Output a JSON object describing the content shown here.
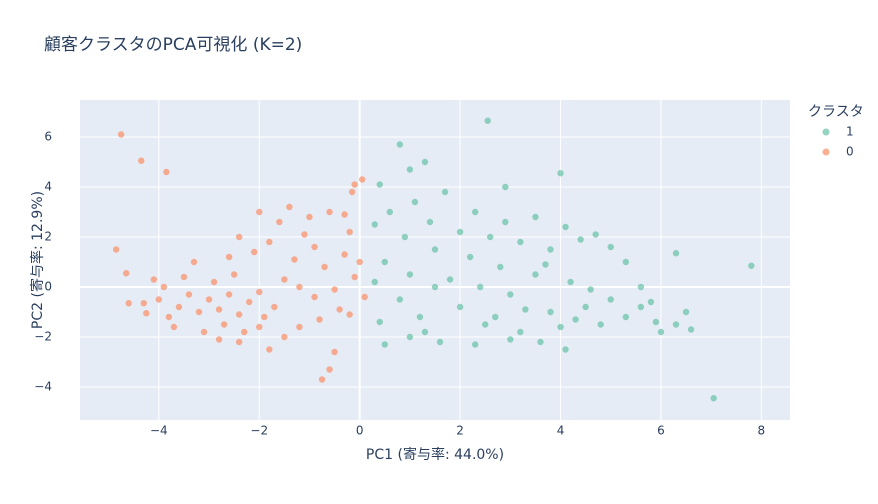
{
  "chart_data": {
    "type": "scatter",
    "title": "顧客クラスタのPCA可視化 (K=2)",
    "x_label": "PC1 (寄与率: 44.0%)",
    "y_label": "PC2 (寄与率: 12.9%)",
    "legend_title": "クラスタ",
    "xlim": [
      -5.57,
      8.57
    ],
    "ylim": [
      -5.32,
      7.48
    ],
    "xticks": [
      {
        "value": -4,
        "label": "−4"
      },
      {
        "value": -2,
        "label": "−2"
      },
      0,
      2,
      4,
      6,
      8
    ],
    "yticks": [
      {
        "value": -4,
        "label": "−4"
      },
      {
        "value": -2,
        "label": "−2"
      },
      0,
      2,
      4,
      6
    ],
    "grid": true,
    "series": [
      {
        "name": "1",
        "color": "#66c2a5",
        "x": [
          0.5,
          0.8,
          1.0,
          1.2,
          1.5,
          1.8,
          2.0,
          2.2,
          2.5,
          2.8,
          3.0,
          3.2,
          3.5,
          3.8,
          4.0,
          4.2,
          4.5,
          4.8,
          5.0,
          5.3,
          5.6,
          5.9,
          6.0,
          6.3,
          6.6,
          0.3,
          0.6,
          0.9,
          1.1,
          1.4,
          1.7,
          2.0,
          2.3,
          2.6,
          2.9,
          3.2,
          3.5,
          3.8,
          4.1,
          4.4,
          4.7,
          5.0,
          5.3,
          5.6,
          1.0,
          1.6,
          2.3,
          3.0,
          3.6,
          4.1,
          0.4,
          0.3,
          0.5,
          1.3,
          2.7,
          3.3,
          4.3,
          1.5,
          2.4,
          3.7,
          4.6,
          5.8,
          6.5,
          2.55,
          7.05,
          7.8,
          6.3,
          0.8,
          4.0,
          2.9,
          1.3,
          1.0,
          0.4
        ],
        "y": [
          1.0,
          -0.5,
          0.5,
          -1.2,
          1.5,
          0.3,
          -0.8,
          1.2,
          -1.5,
          0.8,
          -0.3,
          -1.8,
          0.5,
          -1.0,
          -1.6,
          0.2,
          -0.8,
          -1.5,
          -0.5,
          -1.2,
          -0.8,
          -1.4,
          -1.8,
          -1.5,
          -1.7,
          2.5,
          3.0,
          2.0,
          3.4,
          2.6,
          3.8,
          2.2,
          3.0,
          2.0,
          2.6,
          1.8,
          2.8,
          1.5,
          2.4,
          1.9,
          2.1,
          1.6,
          1.0,
          0.0,
          -2.0,
          -2.2,
          -2.3,
          -2.1,
          -2.2,
          -2.5,
          -1.4,
          0.2,
          -2.3,
          -1.8,
          -1.2,
          -0.9,
          -1.3,
          0.0,
          0.0,
          0.9,
          -0.1,
          -0.6,
          -1.0,
          6.65,
          -4.45,
          0.85,
          1.35,
          5.7,
          4.55,
          4.0,
          5.0,
          4.7,
          4.1
        ]
      },
      {
        "name": "0",
        "color": "#fc8d62",
        "x": [
          -3.0,
          -2.8,
          -2.6,
          -2.4,
          -3.2,
          -2.9,
          -2.5,
          -2.2,
          -3.4,
          -2.7,
          -3.1,
          -2.3,
          -2.0,
          -1.9,
          -3.6,
          -3.8,
          -3.5,
          -2.6,
          -2.1,
          -3.3,
          -2.8,
          -2.4,
          -1.7,
          -1.5,
          -1.3,
          -1.1,
          -0.9,
          -0.7,
          -0.5,
          -0.3,
          -0.2,
          -0.1,
          0.1,
          0.0,
          -0.4,
          -0.8,
          -1.2,
          -1.6,
          -1.4,
          -0.6,
          -2.0,
          -1.0,
          -0.3,
          -1.8,
          -2.4,
          -1.2,
          -0.9,
          -0.2,
          -1.5,
          -2.0,
          -3.9,
          -4.0,
          -4.1,
          -3.7,
          -4.75,
          -4.35,
          -3.85,
          -4.85,
          -4.65,
          -4.6,
          -4.3,
          -4.25,
          -0.75,
          -0.6,
          -0.5,
          -1.8,
          -0.1,
          -0.15,
          0.05
        ],
        "y": [
          -0.5,
          -0.9,
          -0.3,
          -1.1,
          -1.0,
          0.2,
          0.5,
          -0.6,
          -0.3,
          -1.5,
          -1.8,
          -1.8,
          -0.2,
          -1.2,
          -0.8,
          -1.2,
          0.4,
          1.2,
          1.4,
          1.0,
          -2.1,
          -2.2,
          -0.8,
          0.3,
          1.1,
          2.1,
          1.6,
          0.8,
          -0.1,
          1.3,
          2.2,
          0.4,
          -0.4,
          1.0,
          -0.9,
          -1.3,
          -1.6,
          2.6,
          3.2,
          3.0,
          3.0,
          2.8,
          2.9,
          1.8,
          2.0,
          0.0,
          -0.4,
          -1.1,
          -2.0,
          -1.6,
          0.0,
          -0.5,
          0.3,
          -1.6,
          6.1,
          5.05,
          4.6,
          1.5,
          0.55,
          -0.65,
          -0.65,
          -1.05,
          -3.7,
          -3.3,
          -2.6,
          -2.5,
          4.1,
          3.8,
          4.3
        ]
      }
    ]
  }
}
